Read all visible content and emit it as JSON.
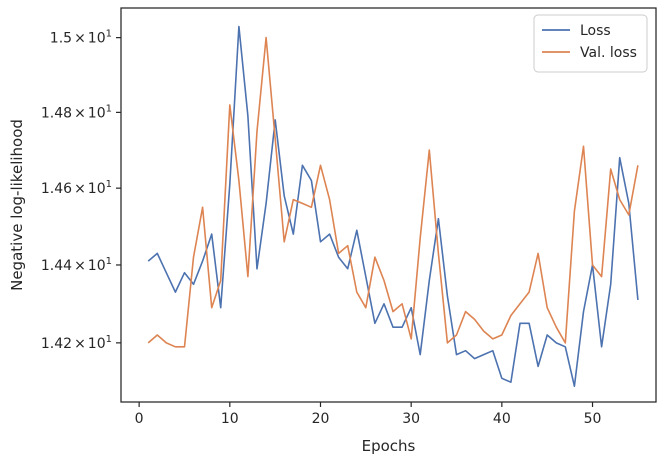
{
  "chart_data": {
    "type": "line",
    "title": "",
    "xlabel": "Epochs",
    "ylabel": "Negative log-likelihood",
    "y_scale": "log",
    "xlim": [
      -2,
      57
    ],
    "ylim": [
      14.05,
      15.08
    ],
    "grid": false,
    "legend_position": "top-right",
    "x_ticks": [
      0,
      10,
      20,
      30,
      40,
      50
    ],
    "x_tick_labels": [
      "0",
      "10",
      "20",
      "30",
      "40",
      "50"
    ],
    "y_ticks": [
      14.2,
      14.4,
      14.6,
      14.8,
      15.0
    ],
    "y_tick_labels": [
      {
        "mantissa": "1.42",
        "times": "×",
        "base": "10",
        "exp": "1"
      },
      {
        "mantissa": "1.44",
        "times": "×",
        "base": "10",
        "exp": "1"
      },
      {
        "mantissa": "1.46",
        "times": "×",
        "base": "10",
        "exp": "1"
      },
      {
        "mantissa": "1.48",
        "times": "×",
        "base": "10",
        "exp": "1"
      },
      {
        "mantissa": "1.5",
        "times": "×",
        "base": "10",
        "exp": "1"
      }
    ],
    "x": [
      1,
      2,
      3,
      4,
      5,
      6,
      7,
      8,
      9,
      10,
      11,
      12,
      13,
      14,
      15,
      16,
      17,
      18,
      19,
      20,
      21,
      22,
      23,
      24,
      25,
      26,
      27,
      28,
      29,
      30,
      31,
      32,
      33,
      34,
      35,
      36,
      37,
      38,
      39,
      40,
      41,
      42,
      43,
      44,
      45,
      46,
      47,
      48,
      49,
      50,
      51,
      52,
      53,
      54,
      55
    ],
    "series": [
      {
        "name": "Loss",
        "color": "#4c72b0",
        "values": [
          14.41,
          14.43,
          14.38,
          14.33,
          14.38,
          14.35,
          14.41,
          14.48,
          14.29,
          14.61,
          15.03,
          14.79,
          14.39,
          14.56,
          14.78,
          14.58,
          14.48,
          14.66,
          14.62,
          14.46,
          14.48,
          14.42,
          14.39,
          14.49,
          14.37,
          14.25,
          14.3,
          14.24,
          14.24,
          14.29,
          14.17,
          14.36,
          14.52,
          14.32,
          14.17,
          14.18,
          14.16,
          14.17,
          14.18,
          14.11,
          14.1,
          14.25,
          14.25,
          14.14,
          14.22,
          14.2,
          14.19,
          14.09,
          14.28,
          14.4,
          14.19,
          14.35,
          14.68,
          14.56,
          14.31
        ]
      },
      {
        "name": "Val. loss",
        "color": "#dd8452",
        "values": [
          14.2,
          14.22,
          14.2,
          14.19,
          14.19,
          14.42,
          14.55,
          14.29,
          14.36,
          14.82,
          14.62,
          14.37,
          14.75,
          15.0,
          14.73,
          14.46,
          14.57,
          14.56,
          14.55,
          14.66,
          14.57,
          14.43,
          14.45,
          14.33,
          14.29,
          14.42,
          14.36,
          14.28,
          14.3,
          14.21,
          14.47,
          14.7,
          14.43,
          14.2,
          14.22,
          14.28,
          14.26,
          14.23,
          14.21,
          14.22,
          14.27,
          14.3,
          14.33,
          14.43,
          14.29,
          14.24,
          14.2,
          14.54,
          14.71,
          14.4,
          14.37,
          14.65,
          14.57,
          14.53,
          14.66
        ]
      }
    ]
  }
}
